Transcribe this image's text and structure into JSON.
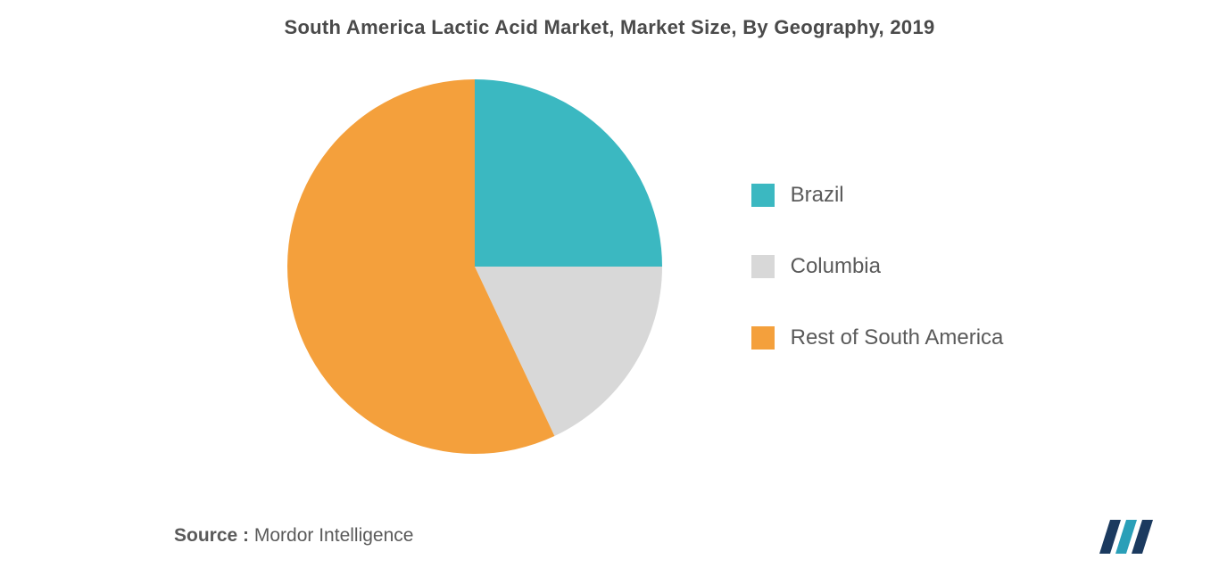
{
  "title": "South America Lactic Acid Market, Market Size, By Geography, 2019",
  "chart": {
    "type": "pie",
    "radius": 210,
    "background_color": "#ffffff",
    "slices": [
      {
        "label": "Brazil",
        "value": 25,
        "color": "#3bb8c1"
      },
      {
        "label": "Columbia",
        "value": 18,
        "color": "#d8d8d8"
      },
      {
        "label": "Rest of South America",
        "value": 57,
        "color": "#f4a03c"
      }
    ]
  },
  "legend": {
    "items": [
      {
        "label": "Brazil",
        "color": "#3bb8c1"
      },
      {
        "label": "Columbia",
        "color": "#d8d8d8"
      },
      {
        "label": "Rest of South America",
        "color": "#f4a03c"
      }
    ],
    "fontsize": 24,
    "text_color": "#5a5a5a"
  },
  "source": {
    "label": "Source :",
    "value": "Mordor Intelligence"
  },
  "logo": {
    "bar_colors": [
      "#1b3a5f",
      "#2a9fb8",
      "#1b3a5f"
    ]
  }
}
